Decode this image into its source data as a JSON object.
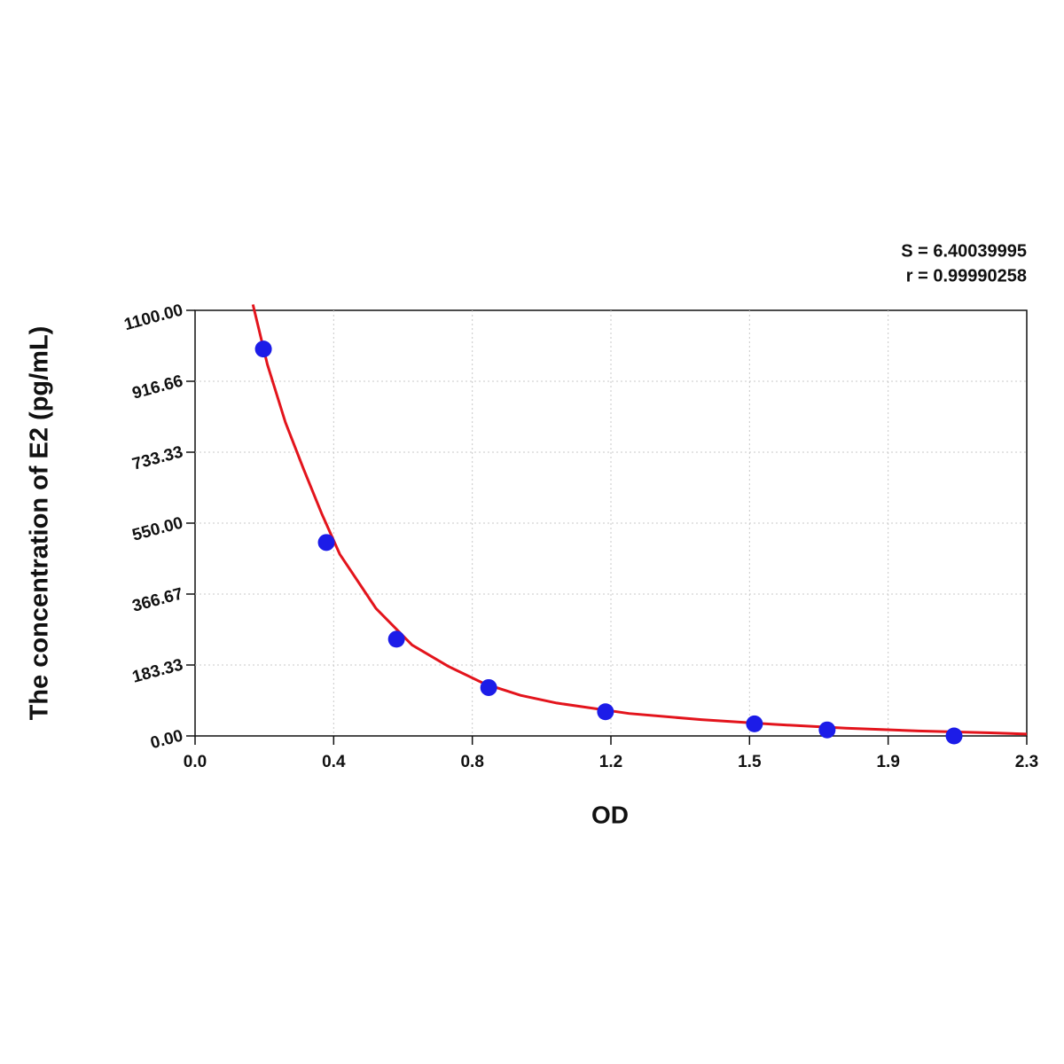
{
  "chart_data": {
    "type": "scatter",
    "x_label": "OD",
    "y_label": "The concentration of E2 (pg/mL)",
    "annotations": [
      "S = 6.40039995",
      "r = 0.99990258"
    ],
    "xlim": [
      0,
      2.3
    ],
    "ylim": [
      0,
      1100
    ],
    "xticks": [
      {
        "value": 0,
        "label": "0.0"
      },
      {
        "value": 0.3833,
        "label": "0.4"
      },
      {
        "value": 0.7667,
        "label": "0.8"
      },
      {
        "value": 1.15,
        "label": "1.2"
      },
      {
        "value": 1.5333,
        "label": "1.5"
      },
      {
        "value": 1.9167,
        "label": "1.9"
      },
      2.3
    ],
    "yticks": [
      {
        "value": 0,
        "label": "0.00"
      },
      183.33,
      366.67,
      {
        "value": 550,
        "label": "550.00"
      },
      733.33,
      916.66,
      {
        "value": 1100,
        "label": "1100.00"
      }
    ],
    "grid": true,
    "series": [
      {
        "type": "scatter",
        "color": "#1c1ce8",
        "x": [
          0.189,
          0.363,
          0.557,
          0.812,
          1.135,
          1.547,
          1.748,
          2.099
        ],
        "values": [
          1000,
          500,
          250,
          125,
          62.5,
          31.25,
          15.6,
          0
        ]
      },
      {
        "type": "line",
        "color": "#e3141c",
        "x": [
          0.16,
          0.2,
          0.25,
          0.3,
          0.35,
          0.4,
          0.5,
          0.6,
          0.7,
          0.8,
          0.9,
          1.0,
          1.2,
          1.4,
          1.6,
          1.8,
          2.0,
          2.2,
          2.3
        ],
        "values": [
          1115,
          960,
          810,
          690,
          575,
          470,
          330,
          235,
          180,
          135,
          105,
          85,
          58,
          42,
          30,
          20,
          13,
          8,
          5
        ]
      }
    ]
  }
}
